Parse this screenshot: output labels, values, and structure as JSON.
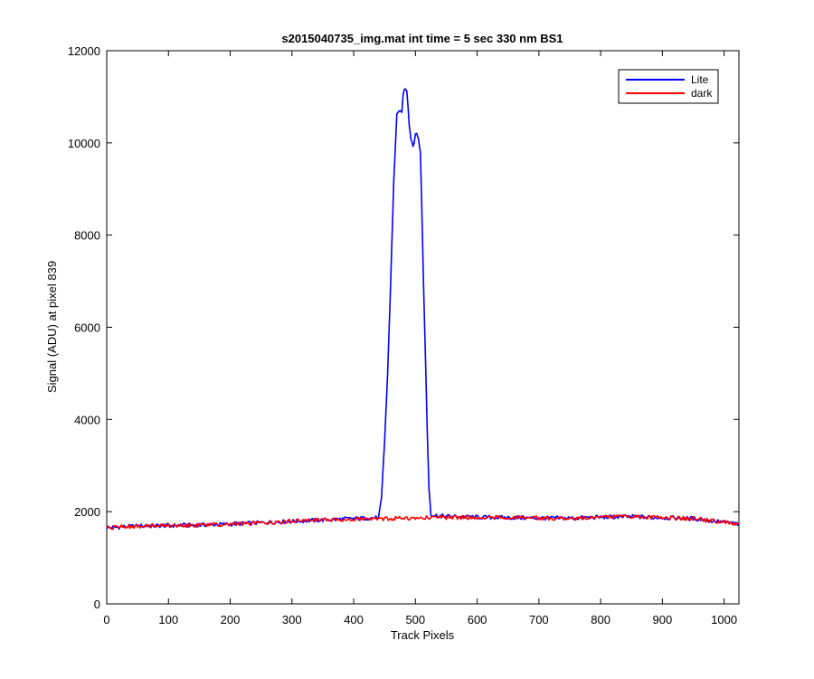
{
  "chart_data": {
    "type": "line",
    "title": "s2015040735_img.mat int time = 5 sec  330 nm BS1",
    "xlabel": "Track Pixels",
    "ylabel": "Signal (ADU) at pixel 839",
    "xlim": [
      0,
      1024
    ],
    "ylim": [
      0,
      12000
    ],
    "xticks": [
      0,
      100,
      200,
      300,
      400,
      500,
      600,
      700,
      800,
      900,
      1000
    ],
    "yticks": [
      0,
      2000,
      4000,
      6000,
      8000,
      10000,
      12000
    ],
    "grid": false,
    "legend_position": "top-right",
    "series": [
      {
        "name": "Lite",
        "color": "#0000ff",
        "points": [
          [
            0,
            1650
          ],
          [
            50,
            1690
          ],
          [
            100,
            1700
          ],
          [
            150,
            1710
          ],
          [
            200,
            1730
          ],
          [
            250,
            1760
          ],
          [
            300,
            1790
          ],
          [
            350,
            1820
          ],
          [
            400,
            1850
          ],
          [
            440,
            1870
          ],
          [
            445,
            2300
          ],
          [
            450,
            3500
          ],
          [
            455,
            5000
          ],
          [
            460,
            7000
          ],
          [
            465,
            9200
          ],
          [
            470,
            10650
          ],
          [
            475,
            10650
          ],
          [
            478,
            10700
          ],
          [
            480,
            11000
          ],
          [
            482,
            11150
          ],
          [
            484,
            11200
          ],
          [
            486,
            11100
          ],
          [
            488,
            10800
          ],
          [
            490,
            10400
          ],
          [
            493,
            10100
          ],
          [
            496,
            9950
          ],
          [
            498,
            10000
          ],
          [
            500,
            10200
          ],
          [
            502,
            10250
          ],
          [
            505,
            10050
          ],
          [
            508,
            9800
          ],
          [
            510,
            8800
          ],
          [
            513,
            7000
          ],
          [
            516,
            5500
          ],
          [
            519,
            3800
          ],
          [
            522,
            2500
          ],
          [
            525,
            1950
          ],
          [
            530,
            1920
          ],
          [
            550,
            1900
          ],
          [
            600,
            1880
          ],
          [
            650,
            1870
          ],
          [
            700,
            1860
          ],
          [
            750,
            1860
          ],
          [
            800,
            1880
          ],
          [
            850,
            1890
          ],
          [
            900,
            1870
          ],
          [
            950,
            1850
          ],
          [
            980,
            1800
          ],
          [
            1000,
            1770
          ],
          [
            1024,
            1730
          ]
        ]
      },
      {
        "name": "dark",
        "color": "#ff0000",
        "points": [
          [
            0,
            1650
          ],
          [
            50,
            1690
          ],
          [
            100,
            1700
          ],
          [
            150,
            1710
          ],
          [
            200,
            1730
          ],
          [
            250,
            1760
          ],
          [
            300,
            1790
          ],
          [
            350,
            1820
          ],
          [
            400,
            1840
          ],
          [
            450,
            1850
          ],
          [
            500,
            1860
          ],
          [
            550,
            1870
          ],
          [
            600,
            1870
          ],
          [
            650,
            1870
          ],
          [
            700,
            1860
          ],
          [
            750,
            1860
          ],
          [
            800,
            1880
          ],
          [
            850,
            1890
          ],
          [
            900,
            1870
          ],
          [
            950,
            1850
          ],
          [
            980,
            1800
          ],
          [
            1000,
            1770
          ],
          [
            1024,
            1730
          ]
        ]
      }
    ]
  }
}
